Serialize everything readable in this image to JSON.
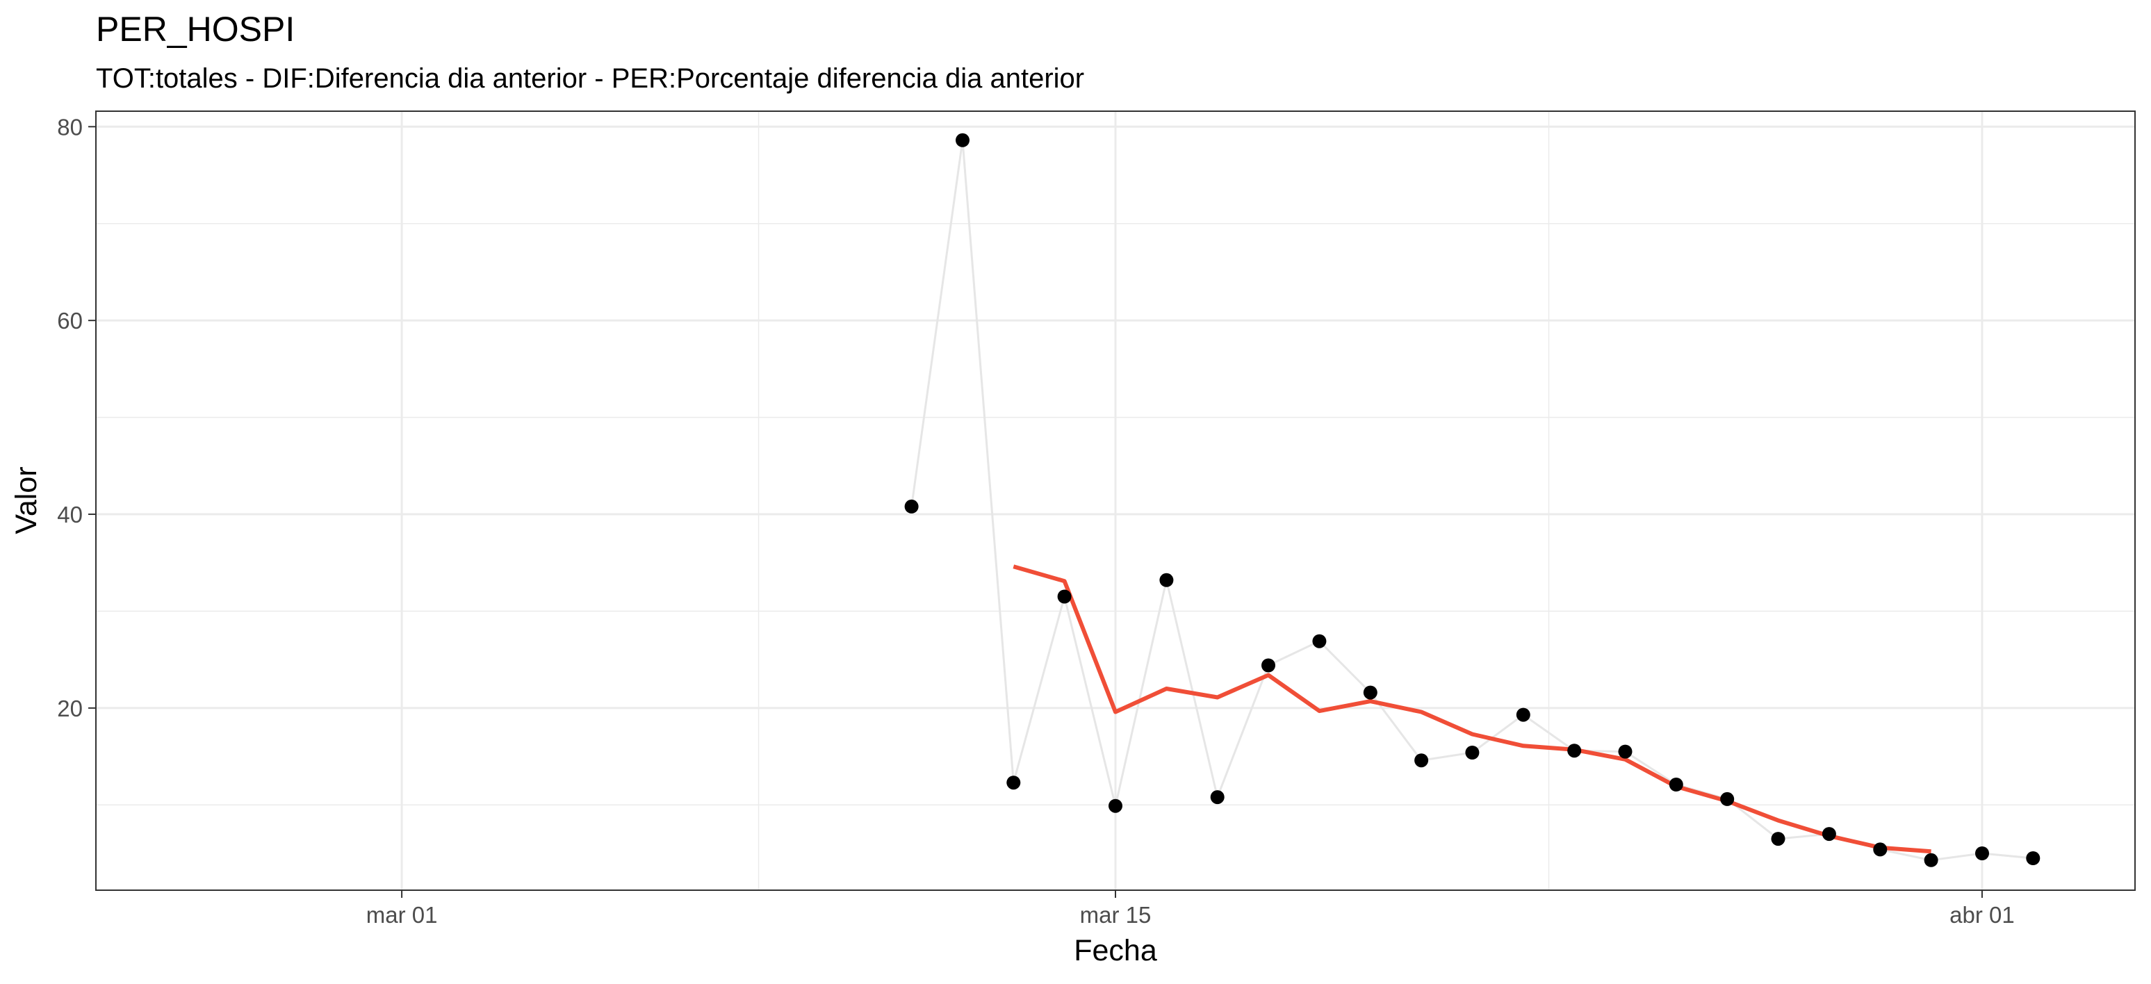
{
  "chart_data": {
    "type": "line",
    "title": "PER_HOSPI",
    "subtitle": "TOT:totales - DIF:Diferencia dia anterior - PER:Porcentaje diferencia dia anterior",
    "xlabel": "Fecha",
    "ylabel": "Valor",
    "x_tick_labels": [
      "mar 01",
      "mar 15",
      "abr 01"
    ],
    "y_tick_labels": [
      "20",
      "40",
      "60",
      "80"
    ],
    "x_ticks": [
      "2020-03-01",
      "2020-03-15",
      "2020-04-01"
    ],
    "y_ticks": [
      20,
      40,
      60,
      80
    ],
    "xlim": [
      "2020-02-24",
      "2020-04-04"
    ],
    "ylim": [
      1.2,
      81.6
    ],
    "grid": true,
    "colors": {
      "points": "#000000",
      "raw_line": "#e6e6e6",
      "smooth_line": "#f04e37"
    },
    "series": [
      {
        "type": "scatter+line",
        "x": [
          "2020-03-11",
          "2020-03-12",
          "2020-03-13",
          "2020-03-14",
          "2020-03-15",
          "2020-03-16",
          "2020-03-17",
          "2020-03-18",
          "2020-03-19",
          "2020-03-20",
          "2020-03-21",
          "2020-03-22",
          "2020-03-23",
          "2020-03-24",
          "2020-03-25",
          "2020-03-26",
          "2020-03-27",
          "2020-03-28",
          "2020-03-29",
          "2020-03-30",
          "2020-03-31",
          "2020-04-01",
          "2020-04-02"
        ],
        "values": [
          40.8,
          78.6,
          12.3,
          31.5,
          9.9,
          33.2,
          10.8,
          24.4,
          26.9,
          21.6,
          14.6,
          15.4,
          19.3,
          15.6,
          15.5,
          12.1,
          10.6,
          6.5,
          7.0,
          5.4,
          4.3,
          5.0,
          4.5
        ]
      },
      {
        "type": "line",
        "x": [
          "2020-03-13",
          "2020-03-14",
          "2020-03-15",
          "2020-03-16",
          "2020-03-17",
          "2020-03-18",
          "2020-03-19",
          "2020-03-20",
          "2020-03-21",
          "2020-03-22",
          "2020-03-23",
          "2020-03-24",
          "2020-03-25",
          "2020-03-26",
          "2020-03-27",
          "2020-03-28",
          "2020-03-29",
          "2020-03-30",
          "2020-03-31"
        ],
        "values": [
          34.6,
          33.1,
          19.6,
          22.0,
          21.1,
          23.4,
          19.7,
          20.7,
          19.6,
          17.3,
          16.1,
          15.7,
          14.7,
          11.9,
          10.4,
          8.4,
          6.8,
          5.6,
          5.2
        ]
      }
    ]
  }
}
